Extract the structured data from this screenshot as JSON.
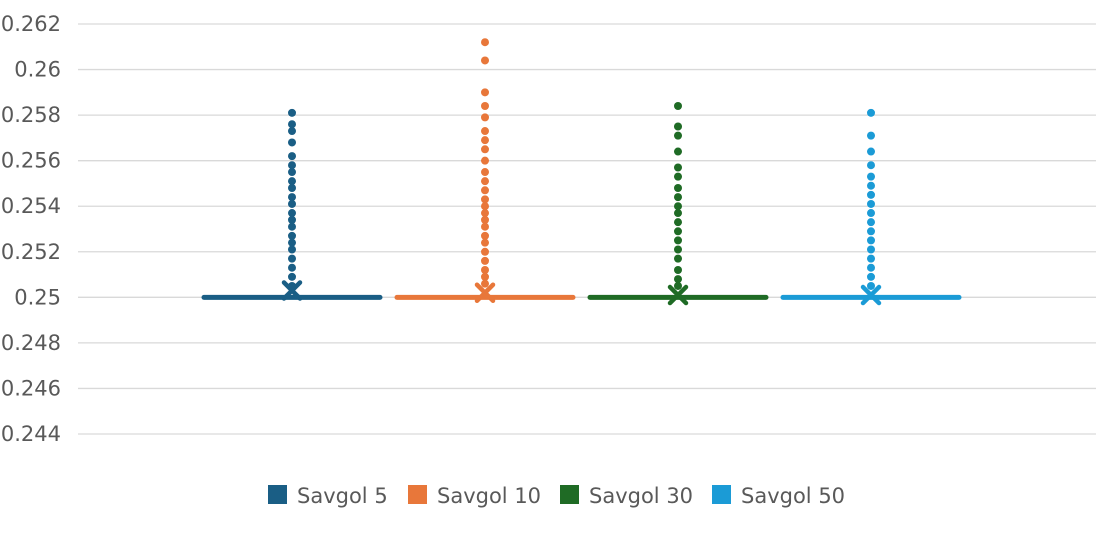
{
  "chart_data": {
    "type": "box-and-whisker",
    "title": "",
    "xlabel": "",
    "ylabel": "",
    "ylim": [
      0.244,
      0.262
    ],
    "yticks": [
      "0.262",
      "0.26",
      "0.258",
      "0.256",
      "0.254",
      "0.252",
      "0.25",
      "0.248",
      "0.246",
      "0.244"
    ],
    "grid": true,
    "legend_position": "bottom",
    "series": [
      {
        "name": "Savgol 5",
        "color": "#1a5e85",
        "median": 0.25,
        "mean": 0.2503,
        "whisker_low": 0.25,
        "whisker_high": 0.25,
        "outliers": [
          0.2581,
          0.2576,
          0.2573,
          0.2568,
          0.2562,
          0.2558,
          0.2555,
          0.2551,
          0.2548,
          0.2544,
          0.2541,
          0.2537,
          0.2534,
          0.2531,
          0.2527,
          0.2524,
          0.2521,
          0.2517,
          0.2513,
          0.2509,
          0.2505
        ]
      },
      {
        "name": "Savgol 10",
        "color": "#e8773a",
        "median": 0.25,
        "mean": 0.2502,
        "whisker_low": 0.25,
        "whisker_high": 0.25,
        "outliers": [
          0.2612,
          0.2604,
          0.259,
          0.2584,
          0.2579,
          0.2573,
          0.2569,
          0.2565,
          0.256,
          0.2555,
          0.2551,
          0.2547,
          0.2543,
          0.254,
          0.2537,
          0.2534,
          0.2531,
          0.2527,
          0.2524,
          0.252,
          0.2516,
          0.2512,
          0.2509,
          0.2506
        ]
      },
      {
        "name": "Savgol 30",
        "color": "#1f6b25",
        "median": 0.25,
        "mean": 0.2501,
        "whisker_low": 0.25,
        "whisker_high": 0.25,
        "outliers": [
          0.2584,
          0.2575,
          0.2571,
          0.2564,
          0.2557,
          0.2553,
          0.2548,
          0.2544,
          0.254,
          0.2537,
          0.2533,
          0.2529,
          0.2525,
          0.2521,
          0.2517,
          0.2512,
          0.2508,
          0.2505
        ]
      },
      {
        "name": "Savgol 50",
        "color": "#1b9bd6",
        "median": 0.25,
        "mean": 0.2501,
        "whisker_low": 0.25,
        "whisker_high": 0.25,
        "outliers": [
          0.2581,
          0.2571,
          0.2564,
          0.2558,
          0.2553,
          0.2549,
          0.2545,
          0.2541,
          0.2537,
          0.2533,
          0.2529,
          0.2525,
          0.2521,
          0.2517,
          0.2513,
          0.2509,
          0.2505
        ]
      }
    ]
  }
}
